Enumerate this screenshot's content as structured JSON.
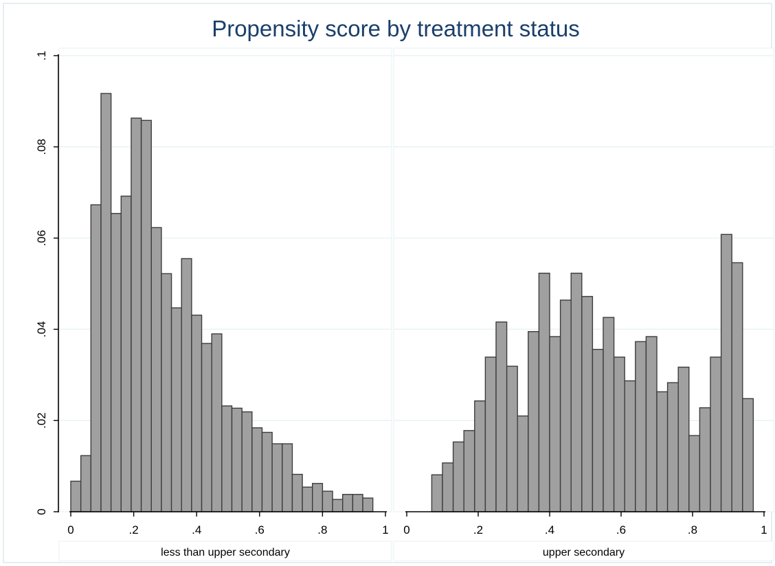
{
  "chart_data": {
    "type": "bar",
    "title": "Propensity score by treatment status",
    "xlabel": "",
    "ylabel": "",
    "ylim": [
      0,
      0.1
    ],
    "xlim": [
      0,
      1
    ],
    "y_ticks": [
      0,
      0.02,
      0.04,
      0.06,
      0.08,
      0.1
    ],
    "y_tick_labels": [
      "0",
      ".02",
      ".04",
      ".06",
      ".08",
      ".1"
    ],
    "x_ticks": [
      0,
      0.2,
      0.4,
      0.6,
      0.8,
      1
    ],
    "x_tick_labels": [
      "0",
      ".2",
      ".4",
      ".6",
      ".8",
      "1"
    ],
    "grid": true,
    "bar_color": "#a0a0a0",
    "bar_edge_color": "#3c3c3c",
    "title_color": "#1a3f6b",
    "panels": [
      {
        "label": "less than upper secondary",
        "bin_width": 0.032,
        "bins": [
          {
            "x0": 0.0,
            "value": 0.0067
          },
          {
            "x0": 0.032,
            "value": 0.0123
          },
          {
            "x0": 0.064,
            "value": 0.0673
          },
          {
            "x0": 0.096,
            "value": 0.0917
          },
          {
            "x0": 0.128,
            "value": 0.0654
          },
          {
            "x0": 0.16,
            "value": 0.0692
          },
          {
            "x0": 0.192,
            "value": 0.0863
          },
          {
            "x0": 0.224,
            "value": 0.0858
          },
          {
            "x0": 0.256,
            "value": 0.0623
          },
          {
            "x0": 0.288,
            "value": 0.0522
          },
          {
            "x0": 0.32,
            "value": 0.0447
          },
          {
            "x0": 0.352,
            "value": 0.0555
          },
          {
            "x0": 0.384,
            "value": 0.0431
          },
          {
            "x0": 0.416,
            "value": 0.0369
          },
          {
            "x0": 0.448,
            "value": 0.039
          },
          {
            "x0": 0.48,
            "value": 0.0232
          },
          {
            "x0": 0.512,
            "value": 0.0227
          },
          {
            "x0": 0.544,
            "value": 0.0219
          },
          {
            "x0": 0.576,
            "value": 0.0184
          },
          {
            "x0": 0.608,
            "value": 0.0174
          },
          {
            "x0": 0.64,
            "value": 0.0149
          },
          {
            "x0": 0.672,
            "value": 0.0149
          },
          {
            "x0": 0.704,
            "value": 0.0082
          },
          {
            "x0": 0.736,
            "value": 0.0054
          },
          {
            "x0": 0.768,
            "value": 0.0062
          },
          {
            "x0": 0.8,
            "value": 0.0045
          },
          {
            "x0": 0.832,
            "value": 0.0027
          },
          {
            "x0": 0.864,
            "value": 0.0038
          },
          {
            "x0": 0.896,
            "value": 0.0038
          },
          {
            "x0": 0.928,
            "value": 0.003
          }
        ]
      },
      {
        "label": "upper secondary",
        "bin_width": 0.03,
        "bins": [
          {
            "x0": 0.07,
            "value": 0.0081
          },
          {
            "x0": 0.1,
            "value": 0.0107
          },
          {
            "x0": 0.13,
            "value": 0.0153
          },
          {
            "x0": 0.16,
            "value": 0.0178
          },
          {
            "x0": 0.19,
            "value": 0.0243
          },
          {
            "x0": 0.22,
            "value": 0.0339
          },
          {
            "x0": 0.25,
            "value": 0.0416
          },
          {
            "x0": 0.28,
            "value": 0.0319
          },
          {
            "x0": 0.31,
            "value": 0.021
          },
          {
            "x0": 0.34,
            "value": 0.0395
          },
          {
            "x0": 0.37,
            "value": 0.0523
          },
          {
            "x0": 0.4,
            "value": 0.0384
          },
          {
            "x0": 0.43,
            "value": 0.0464
          },
          {
            "x0": 0.46,
            "value": 0.0523
          },
          {
            "x0": 0.49,
            "value": 0.0472
          },
          {
            "x0": 0.52,
            "value": 0.0356
          },
          {
            "x0": 0.55,
            "value": 0.0426
          },
          {
            "x0": 0.58,
            "value": 0.0339
          },
          {
            "x0": 0.61,
            "value": 0.0287
          },
          {
            "x0": 0.64,
            "value": 0.0373
          },
          {
            "x0": 0.67,
            "value": 0.0384
          },
          {
            "x0": 0.7,
            "value": 0.0263
          },
          {
            "x0": 0.73,
            "value": 0.0283
          },
          {
            "x0": 0.76,
            "value": 0.0317
          },
          {
            "x0": 0.79,
            "value": 0.0167
          },
          {
            "x0": 0.82,
            "value": 0.0228
          },
          {
            "x0": 0.85,
            "value": 0.0339
          },
          {
            "x0": 0.88,
            "value": 0.0608
          },
          {
            "x0": 0.91,
            "value": 0.0546
          },
          {
            "x0": 0.94,
            "value": 0.0248
          }
        ]
      }
    ]
  }
}
